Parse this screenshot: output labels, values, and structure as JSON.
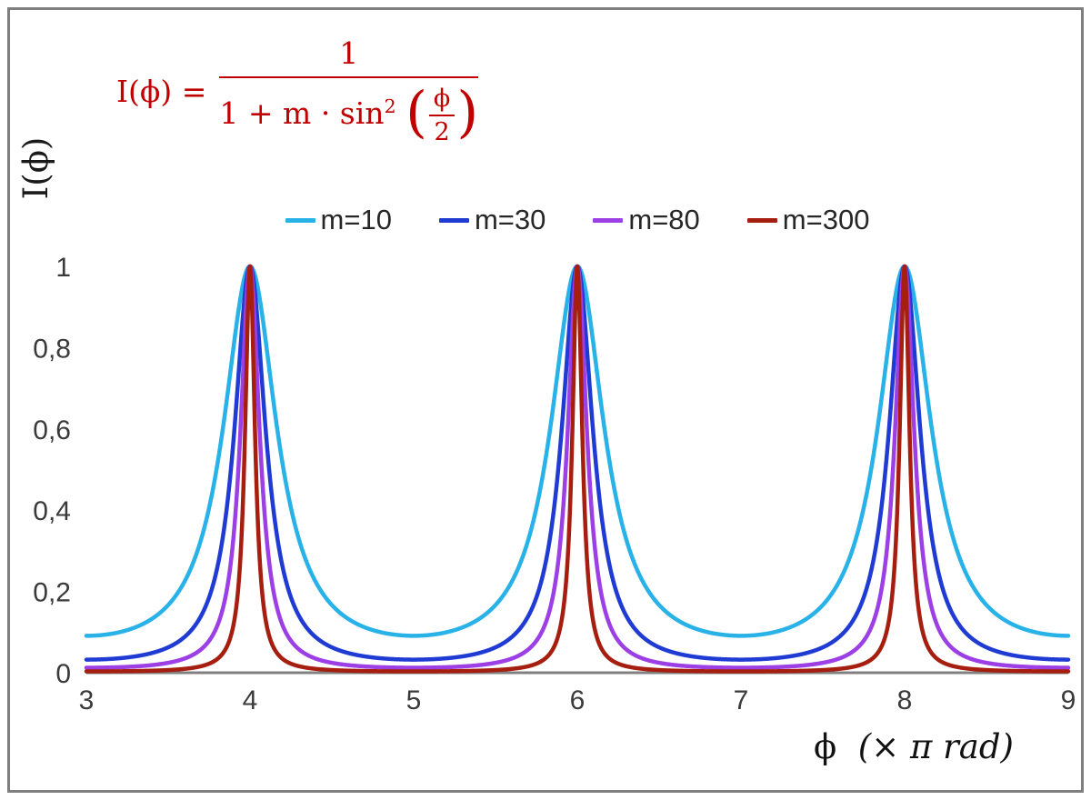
{
  "figure": {
    "background": "#ffffff",
    "border_color": "#7f7f7f"
  },
  "formula": {
    "lhs": "I(ϕ) =",
    "numerator": "1",
    "den_prefix": "1 + m · sin",
    "den_sup": "2",
    "inner_num": "ϕ",
    "inner_den": "2",
    "open_paren": "(",
    "close_paren": ")",
    "color": "#C00000"
  },
  "axes": {
    "ylabel": "I(ϕ)",
    "xlabel_symbol": "ϕ",
    "xlabel_unit": "(× π rad)"
  },
  "chart_data": {
    "type": "line",
    "title": "",
    "formula_text": "I(ϕ) = 1 / (1 + m · sin²(ϕ/2))",
    "xlabel": "ϕ (× π rad)",
    "ylabel": "I(ϕ)",
    "x_units": "π rad",
    "xlim": [
      3,
      9
    ],
    "ylim": [
      0,
      1
    ],
    "x_ticks": [
      3,
      4,
      5,
      6,
      7,
      8,
      9
    ],
    "y_ticks": [
      0,
      0.2,
      0.4,
      0.6,
      0.8,
      1
    ],
    "y_tick_labels": [
      "0",
      "0,2",
      "0,4",
      "0,6",
      "0,8",
      "1"
    ],
    "grid": false,
    "legend_position": "top-center",
    "function": "I(x) = 1 / (1 + m · sin²(π·x/2)), x in units of π rad; peaks of height 1 at x = 4, 6, 8",
    "series": [
      {
        "name": "m=10",
        "m": 10,
        "color": "#29B2E8",
        "peak_value": 1,
        "valley_value": 0.091
      },
      {
        "name": "m=30",
        "m": 30,
        "color": "#1F3BD4",
        "peak_value": 1,
        "valley_value": 0.032
      },
      {
        "name": "m=80",
        "m": 80,
        "color": "#9C3FE4",
        "peak_value": 1,
        "valley_value": 0.012
      },
      {
        "name": "m=300",
        "m": 300,
        "color": "#A51E0F",
        "peak_value": 1,
        "valley_value": 0.003
      }
    ],
    "colors": {
      "axis": "#808080",
      "tick_text": "#3a3a3a",
      "legend_text": "#262626"
    }
  }
}
